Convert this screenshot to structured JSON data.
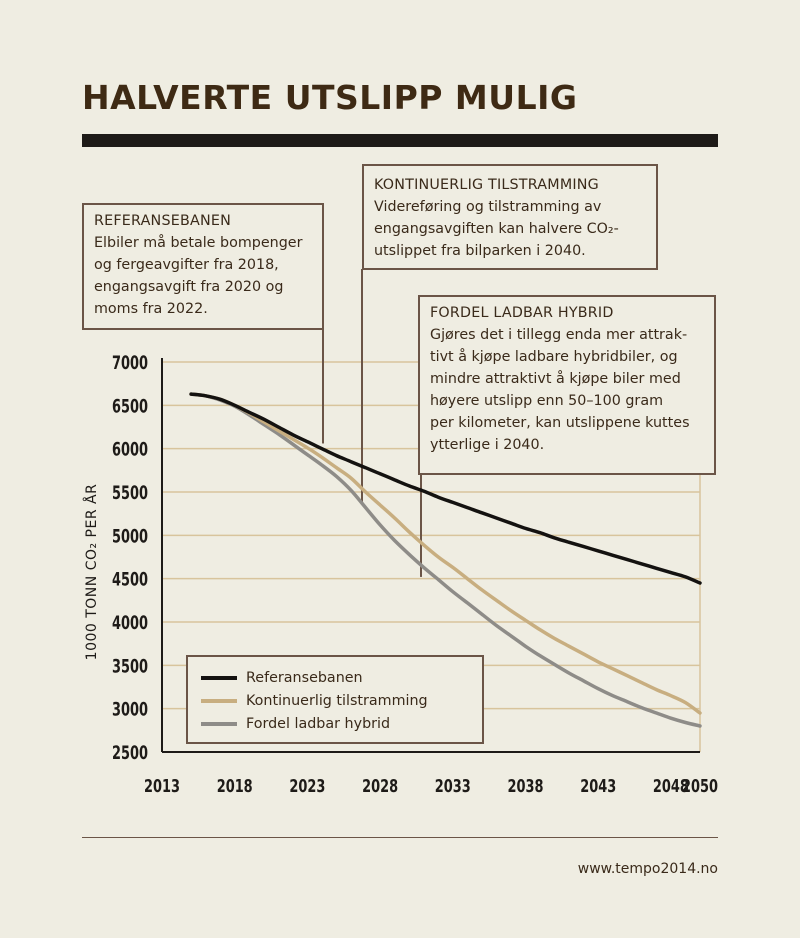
{
  "title": "HALVERTE UTSLIPP MULIG",
  "source_url": "www.tempo2014.no",
  "colors": {
    "background": "#efede2",
    "title": "#3e2a14",
    "grid": "#d8c49c",
    "axis": "#1e1b18",
    "referansebanen": "#141210",
    "kontinuerlig": "#c8ae80",
    "fordel": "#8e8c88",
    "box_border": "#6b5547"
  },
  "annotations": {
    "referanse": {
      "heading": "Referansebanen",
      "body": "Elbiler må betale bompenger\nog fergeavgifter fra 2018,\nengangsavgift fra 2020 og\nmoms fra 2022."
    },
    "kontinuerlig": {
      "heading": "Kontinuerlig tilstramming",
      "body": "Videreføring og tilstramming av\nengangsavgiften kan halvere CO₂-\nutslippet fra bilparken i 2040."
    },
    "fordel": {
      "heading": "Fordel ladbar hybrid",
      "body": "Gjøres det i tillegg enda mer attrak-\ntivt å kjøpe ladbare hybridbiler, og\nmindre attraktivt å kjøpe biler med\nhøyere utslipp enn 50–100 gram\nper kilometer, kan utslippene kuttes\nytterlige i 2040."
    }
  },
  "chart_data": {
    "type": "line",
    "ylabel": "1000 TONN CO₂ PER ÅR",
    "xlabel": "",
    "xlim": [
      2013,
      2050
    ],
    "ylim": [
      2500,
      7000
    ],
    "x_ticks": [
      2013,
      2018,
      2023,
      2028,
      2033,
      2038,
      2043,
      2048,
      2050
    ],
    "y_ticks": [
      2500,
      3000,
      3500,
      4000,
      4500,
      5000,
      5500,
      6000,
      6500,
      7000
    ],
    "grid": "horizontal",
    "legend_position": "bottom-left",
    "series": [
      {
        "name": "Referansebanen",
        "color_key": "referansebanen",
        "x": [
          2015,
          2016,
          2017,
          2018,
          2019,
          2020,
          2021,
          2022,
          2023,
          2024,
          2025,
          2026,
          2027,
          2028,
          2029,
          2030,
          2031,
          2032,
          2033,
          2034,
          2035,
          2036,
          2037,
          2038,
          2039,
          2040,
          2041,
          2042,
          2043,
          2044,
          2045,
          2046,
          2047,
          2048,
          2049,
          2050
        ],
        "y": [
          6630,
          6610,
          6570,
          6500,
          6420,
          6340,
          6250,
          6160,
          6080,
          6000,
          5920,
          5850,
          5780,
          5710,
          5640,
          5570,
          5510,
          5440,
          5380,
          5320,
          5260,
          5200,
          5140,
          5080,
          5030,
          4970,
          4920,
          4870,
          4820,
          4770,
          4720,
          4670,
          4620,
          4570,
          4520,
          4450
        ]
      },
      {
        "name": "Kontinuerlig tilstramming",
        "color_key": "kontinuerlig",
        "x": [
          2015,
          2016,
          2017,
          2018,
          2019,
          2020,
          2021,
          2022,
          2023,
          2024,
          2025,
          2026,
          2027,
          2028,
          2029,
          2030,
          2031,
          2032,
          2033,
          2034,
          2035,
          2036,
          2037,
          2038,
          2039,
          2040,
          2041,
          2042,
          2043,
          2044,
          2045,
          2046,
          2047,
          2048,
          2049,
          2050
        ],
        "y": [
          6630,
          6610,
          6570,
          6500,
          6410,
          6310,
          6210,
          6110,
          6010,
          5900,
          5780,
          5660,
          5500,
          5350,
          5200,
          5040,
          4890,
          4750,
          4630,
          4500,
          4370,
          4250,
          4130,
          4020,
          3910,
          3810,
          3720,
          3630,
          3540,
          3460,
          3380,
          3300,
          3220,
          3150,
          3070,
          2950
        ]
      },
      {
        "name": "Fordel ladbar hybrid",
        "color_key": "fordel",
        "x": [
          2015,
          2016,
          2017,
          2018,
          2019,
          2020,
          2021,
          2022,
          2023,
          2024,
          2025,
          2026,
          2027,
          2028,
          2029,
          2030,
          2031,
          2032,
          2033,
          2034,
          2035,
          2036,
          2037,
          2038,
          2039,
          2040,
          2041,
          2042,
          2043,
          2044,
          2045,
          2046,
          2047,
          2048,
          2049,
          2050
        ],
        "y": [
          6630,
          6610,
          6560,
          6490,
          6390,
          6280,
          6170,
          6050,
          5930,
          5810,
          5680,
          5520,
          5320,
          5120,
          4940,
          4780,
          4630,
          4490,
          4350,
          4220,
          4090,
          3960,
          3840,
          3720,
          3610,
          3510,
          3410,
          3320,
          3230,
          3150,
          3080,
          3010,
          2950,
          2890,
          2840,
          2800
        ]
      }
    ]
  }
}
